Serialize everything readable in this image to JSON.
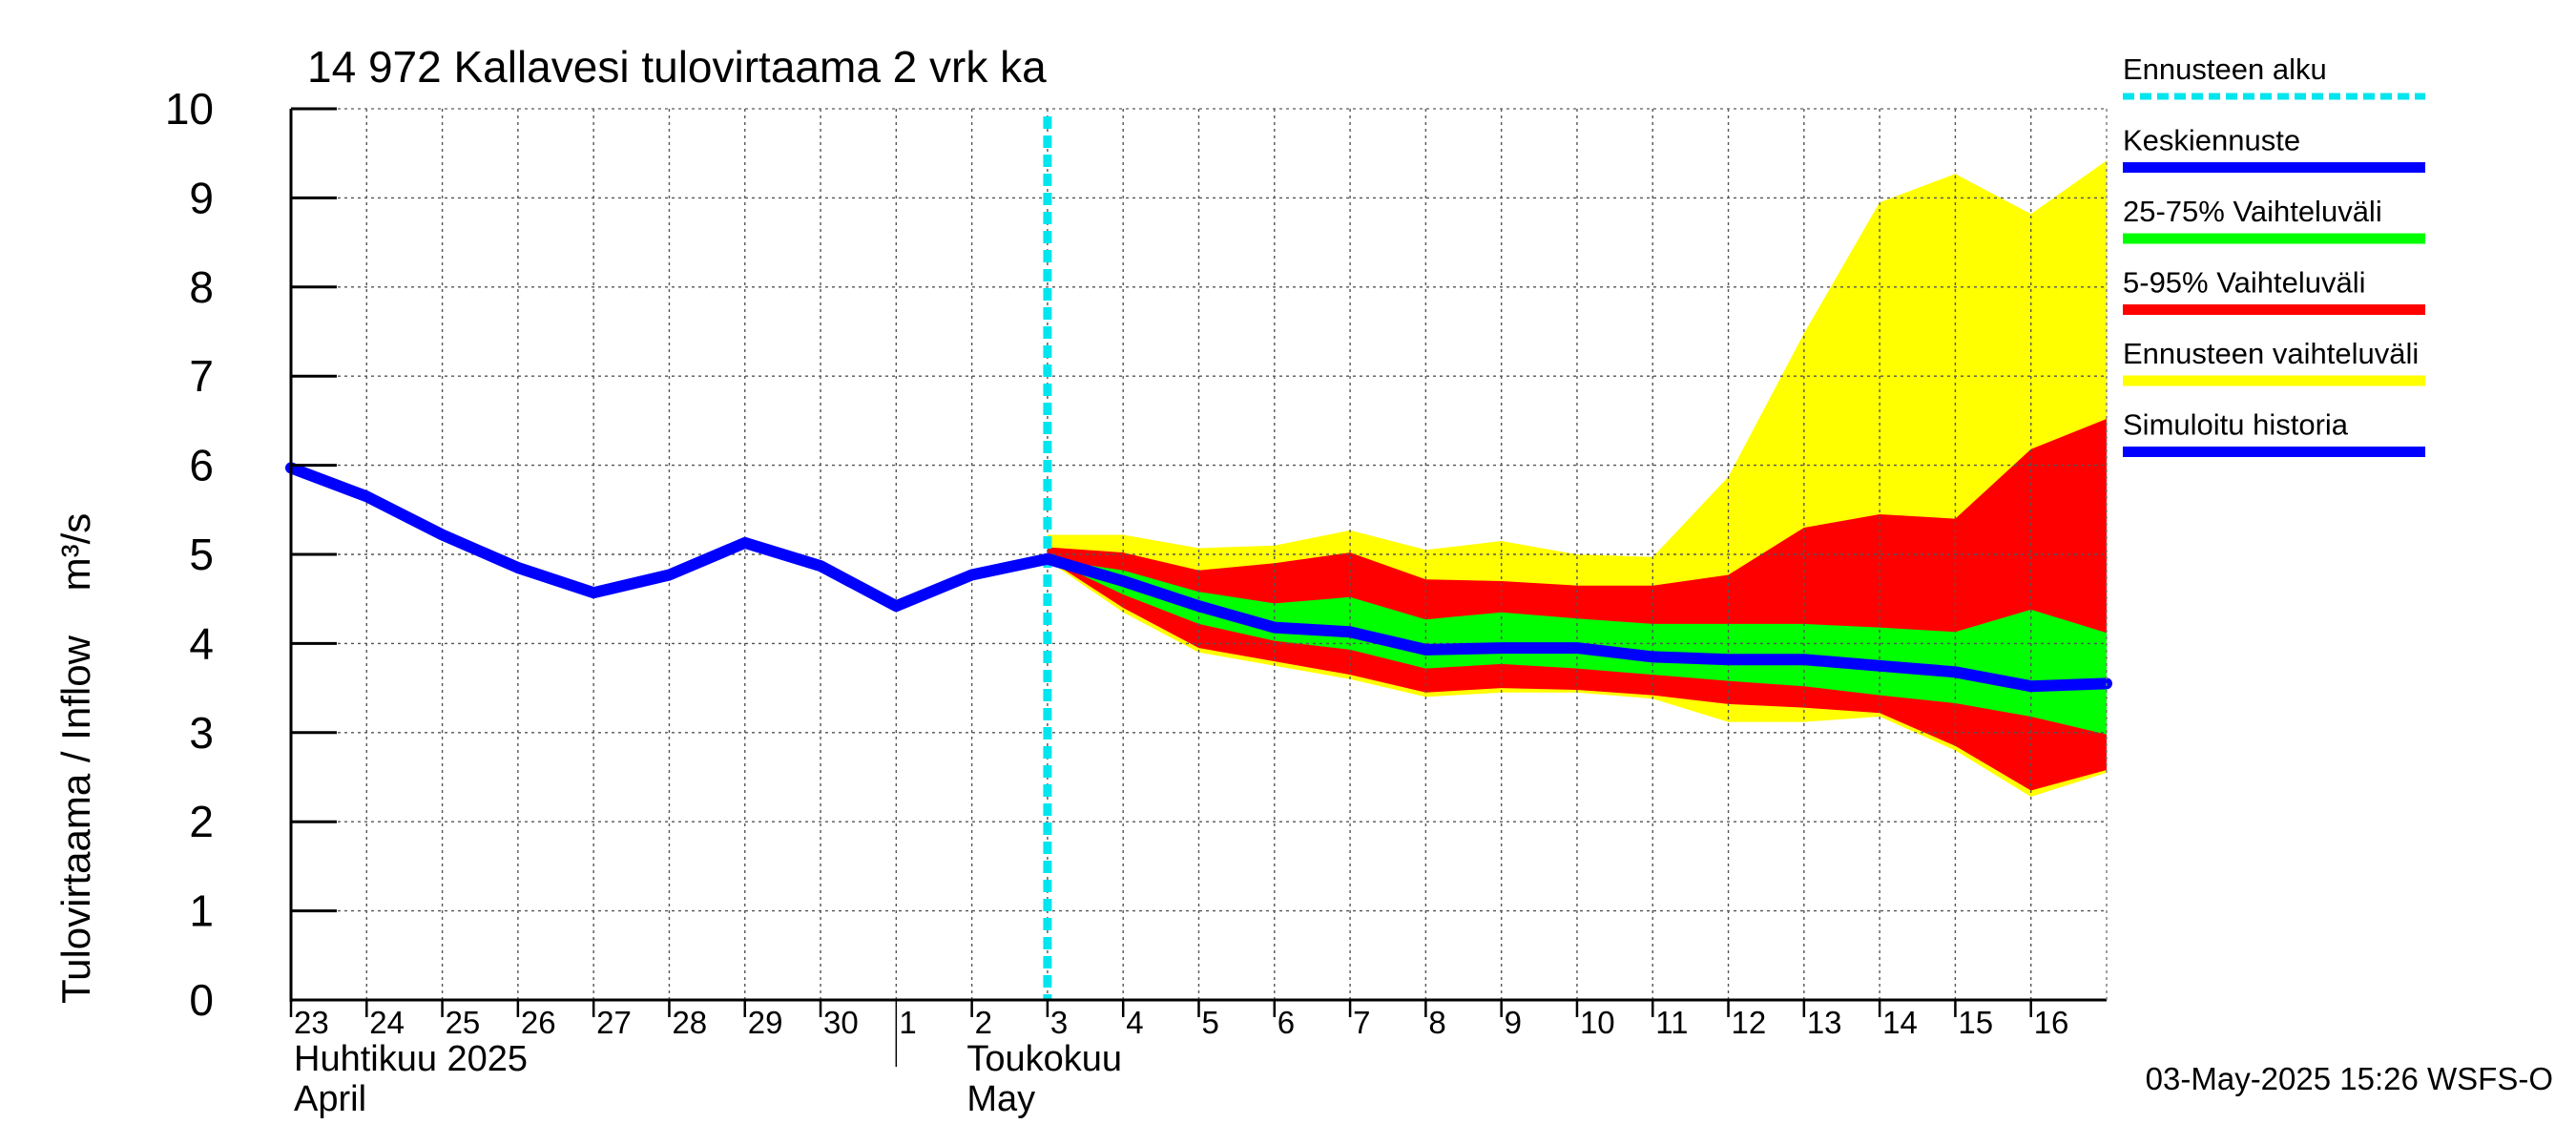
{
  "chart_data": {
    "type": "area",
    "title": "14 972 Kallavesi tulovirtaama 2 vrk ka",
    "ylabel": "Tulovirtaama / Inflow    m³/s",
    "ylim": [
      0,
      10
    ],
    "yticks": [
      "0",
      "1",
      "2",
      "3",
      "4",
      "5",
      "6",
      "7",
      "8",
      "9",
      "10"
    ],
    "x_dates": [
      "2025-04-23",
      "2025-04-24",
      "2025-04-25",
      "2025-04-26",
      "2025-04-27",
      "2025-04-28",
      "2025-04-29",
      "2025-04-30",
      "2025-05-01",
      "2025-05-02",
      "2025-05-03",
      "2025-05-04",
      "2025-05-05",
      "2025-05-06",
      "2025-05-07",
      "2025-05-08",
      "2025-05-09",
      "2025-05-10",
      "2025-05-11",
      "2025-05-12",
      "2025-05-13",
      "2025-05-14",
      "2025-05-15",
      "2025-05-16",
      "2025-05-17"
    ],
    "x_tick_labels": [
      "23",
      "24",
      "25",
      "26",
      "27",
      "28",
      "29",
      "30",
      "1",
      "2",
      "3",
      "4",
      "5",
      "6",
      "7",
      "8",
      "9",
      "10",
      "11",
      "12",
      "13",
      "14",
      "15",
      "16"
    ],
    "month_labels": [
      {
        "fi": "Huhtikuu  2025",
        "en": "April"
      },
      {
        "fi": "Toukokuu",
        "en": "May"
      }
    ],
    "forecast_start": "2025-05-03",
    "grid": true,
    "legend_position": "right",
    "legend": [
      {
        "label": "Ennusteen alku",
        "color": "#00e5ee",
        "style": "dashed"
      },
      {
        "label": "Keskiennuste",
        "color": "#0000ff",
        "style": "line"
      },
      {
        "label": "25-75% Vaihteluväli",
        "color": "#00ff00",
        "style": "band"
      },
      {
        "label": "5-95% Vaihteluväli",
        "color": "#ff0000",
        "style": "band"
      },
      {
        "label": "Ennusteen vaihteluväli",
        "color": "#ffff00",
        "style": "band"
      },
      {
        "label": "Simuloitu historia",
        "color": "#0000ff",
        "style": "line"
      }
    ],
    "series": [
      {
        "name": "Simuloitu historia",
        "x": [
          "2025-04-23",
          "2025-04-24",
          "2025-04-25",
          "2025-04-26",
          "2025-04-27",
          "2025-04-28",
          "2025-04-29",
          "2025-04-30",
          "2025-05-01",
          "2025-05-02",
          "2025-05-03"
        ],
        "values": [
          5.97,
          5.65,
          5.22,
          4.85,
          4.57,
          4.77,
          5.13,
          4.87,
          4.42,
          4.77,
          4.95
        ]
      },
      {
        "name": "Keskiennuste",
        "x": [
          "2025-05-03",
          "2025-05-04",
          "2025-05-05",
          "2025-05-06",
          "2025-05-07",
          "2025-05-08",
          "2025-05-09",
          "2025-05-10",
          "2025-05-11",
          "2025-05-12",
          "2025-05-13",
          "2025-05-14",
          "2025-05-15",
          "2025-05-16",
          "2025-05-17"
        ],
        "values": [
          4.95,
          4.7,
          4.42,
          4.18,
          4.13,
          3.93,
          3.95,
          3.95,
          3.85,
          3.82,
          3.82,
          3.75,
          3.68,
          3.52,
          3.55
        ]
      },
      {
        "name": "25-75% Vaihteluväli",
        "x": [
          "2025-05-03",
          "2025-05-04",
          "2025-05-05",
          "2025-05-06",
          "2025-05-07",
          "2025-05-08",
          "2025-05-09",
          "2025-05-10",
          "2025-05-11",
          "2025-05-12",
          "2025-05-13",
          "2025-05-14",
          "2025-05-15",
          "2025-05-16",
          "2025-05-17"
        ],
        "low": [
          4.95,
          4.55,
          4.22,
          4.03,
          3.93,
          3.72,
          3.77,
          3.72,
          3.65,
          3.58,
          3.52,
          3.42,
          3.33,
          3.18,
          2.98
        ],
        "high": [
          4.95,
          4.82,
          4.58,
          4.45,
          4.52,
          4.27,
          4.35,
          4.28,
          4.22,
          4.22,
          4.22,
          4.18,
          4.13,
          4.38,
          4.12
        ]
      },
      {
        "name": "5-95% Vaihteluväli",
        "x": [
          "2025-05-03",
          "2025-05-04",
          "2025-05-05",
          "2025-05-06",
          "2025-05-07",
          "2025-05-08",
          "2025-05-09",
          "2025-05-10",
          "2025-05-11",
          "2025-05-12",
          "2025-05-13",
          "2025-05-14",
          "2025-05-15",
          "2025-05-16",
          "2025-05-17"
        ],
        "low": [
          4.95,
          4.4,
          3.95,
          3.8,
          3.65,
          3.45,
          3.5,
          3.48,
          3.42,
          3.32,
          3.28,
          3.22,
          2.85,
          2.35,
          2.58
        ],
        "high": [
          5.08,
          5.02,
          4.82,
          4.9,
          5.02,
          4.72,
          4.7,
          4.65,
          4.65,
          4.77,
          5.3,
          5.45,
          5.4,
          6.18,
          6.52
        ]
      },
      {
        "name": "Ennusteen vaihteluväli",
        "x": [
          "2025-05-03",
          "2025-05-04",
          "2025-05-05",
          "2025-05-06",
          "2025-05-07",
          "2025-05-08",
          "2025-05-09",
          "2025-05-10",
          "2025-05-11",
          "2025-05-12",
          "2025-05-13",
          "2025-05-14",
          "2025-05-15",
          "2025-05-16",
          "2025-05-17"
        ],
        "low": [
          4.93,
          4.35,
          3.9,
          3.75,
          3.6,
          3.4,
          3.45,
          3.45,
          3.38,
          3.12,
          3.12,
          3.18,
          2.8,
          2.28,
          2.55
        ],
        "high": [
          5.22,
          5.22,
          5.07,
          5.1,
          5.27,
          5.05,
          5.15,
          5.0,
          4.97,
          5.87,
          7.48,
          8.95,
          9.27,
          8.82,
          9.42
        ]
      }
    ]
  },
  "timestamp": "03-May-2025 15:26 WSFS-O"
}
